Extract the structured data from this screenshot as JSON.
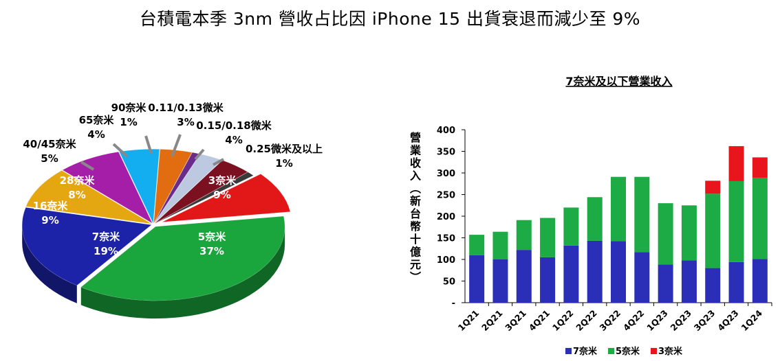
{
  "page": {
    "title": "台積電本季 3nm 營收占比因 iPhone 15 出貨衰退而減少至 9%"
  },
  "chart_data": [
    {
      "type": "pie",
      "style": "3d-exploded",
      "slices": [
        {
          "name": "5奈米",
          "value": 37,
          "label": "37%",
          "color": "#1aa63c"
        },
        {
          "name": "7奈米",
          "value": 19,
          "label": "19%",
          "color": "#1c23a8"
        },
        {
          "name": "16奈米",
          "value": 9,
          "label": "9%",
          "color": "#e5a711"
        },
        {
          "name": "28奈米",
          "value": 8,
          "label": "8%",
          "color": "#a51ea8"
        },
        {
          "name": "40/45奈米",
          "value": 5,
          "label": "5%",
          "color": "#12aef0"
        },
        {
          "name": "65奈米",
          "value": 4,
          "label": "4%",
          "color": "#e26d10"
        },
        {
          "name": "90奈米",
          "value": 1,
          "label": "1%",
          "color": "#6a2b8a"
        },
        {
          "name": "0.11/0.13微米",
          "value": 3,
          "label": "3%",
          "color": "#bcc9e0"
        },
        {
          "name": "0.15/0.18微米",
          "value": 4,
          "label": "4%",
          "color": "#7a1020"
        },
        {
          "name": "0.25微米及以上",
          "value": 1,
          "label": "1%",
          "color": "#3a3a3a"
        },
        {
          "name": "3奈米",
          "value": 9,
          "label": "9%",
          "color": "#e21717"
        }
      ]
    },
    {
      "type": "bar",
      "stacked": true,
      "title": "7奈米及以下營業收入",
      "ylabel": "營業收入(新台幣十億元)",
      "ylim": [
        0,
        400
      ],
      "yticks": [
        "-",
        "50",
        "100",
        "150",
        "200",
        "250",
        "300",
        "350",
        "400"
      ],
      "categories": [
        "1Q21",
        "2Q21",
        "3Q21",
        "4Q21",
        "1Q22",
        "2Q22",
        "3Q22",
        "4Q22",
        "1Q23",
        "2Q23",
        "3Q23",
        "4Q23",
        "1Q24"
      ],
      "series": [
        {
          "name": "7奈米",
          "color": "#2b2fb8",
          "values": [
            110,
            100,
            122,
            105,
            132,
            143,
            142,
            117,
            88,
            98,
            80,
            94,
            101
          ]
        },
        {
          "name": "5奈米",
          "color": "#1dab45",
          "values": [
            47,
            64,
            69,
            91,
            88,
            101,
            149,
            174,
            142,
            127,
            172,
            187,
            188
          ]
        },
        {
          "name": "3奈米",
          "color": "#e8161c",
          "values": [
            0,
            0,
            0,
            0,
            0,
            0,
            0,
            0,
            0,
            0,
            30,
            81,
            47
          ]
        }
      ],
      "legend_position": "bottom"
    }
  ]
}
